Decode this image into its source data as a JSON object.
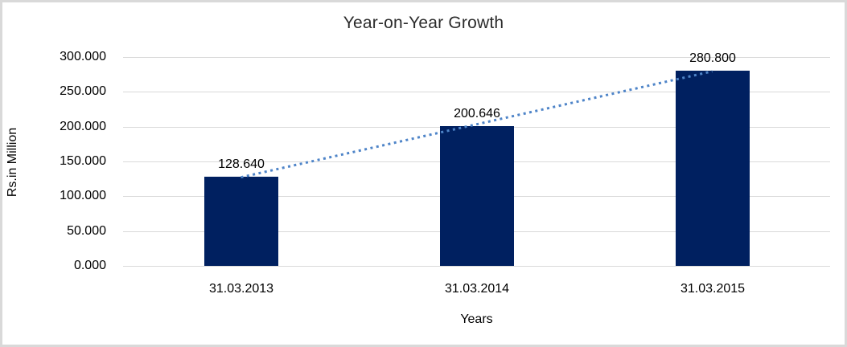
{
  "chart_data": {
    "type": "bar",
    "title": "Year-on-Year Growth",
    "xlabel": "Years",
    "ylabel": "Rs.in Million",
    "categories": [
      "31.03.2013",
      "31.03.2014",
      "31.03.2015"
    ],
    "values": [
      128.64,
      200.646,
      280.8
    ],
    "data_labels": [
      "128.640",
      "200.646",
      "280.800"
    ],
    "ytick_labels": [
      "0.000",
      "50.000",
      "100.000",
      "150.000",
      "200.000",
      "250.000",
      "300.000"
    ],
    "ylim": [
      0,
      300
    ],
    "ytick_step": 50,
    "grid": "horizontal",
    "legend": "none",
    "trendline": {
      "type": "linear",
      "style": "dotted",
      "color": "#4e84c8"
    },
    "bar_color": "#002060",
    "gridline_color": "#d9d9d9",
    "frame_color": "#d9d9d9",
    "text_color": "#000000"
  }
}
